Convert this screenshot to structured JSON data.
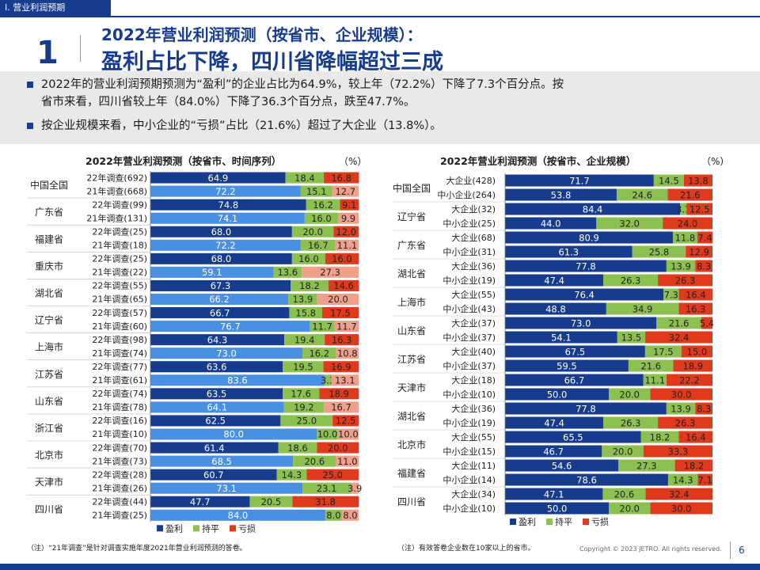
{
  "section_tag": "Ⅰ. 营业利润预期",
  "page_number_big": "1",
  "title_line1": "2022年营业利润预测（按省市、企业规模）：",
  "title_line2": "盈利占比下降，四川省降幅超过三成",
  "bullets": [
    "2022年的营业利润预期预测为“盈利”的企业占比为64.9%，较上年（72.2%）下降了7.3个百分点。按",
    "省市来看，四川省较上年（84.0%）下降了36.3个百分点，跌至47.7%。",
    "按企业规模来看，中小企业的“亏损”占比（21.6%）超过了大企业（13.8%）。"
  ],
  "colors": {
    "primary": "#173c8e",
    "profit_dark": "#173c8e",
    "profit_light": "#4a90e2",
    "flat": "#8cc152",
    "loss": "#e03a1e",
    "loss_light": "#f0a08a"
  },
  "chart_data": [
    {
      "type": "bar",
      "stacked": true,
      "orientation": "horizontal",
      "title": "2022年营业利润预测（按省市、时间序列）",
      "unit": "（%）",
      "series_names": [
        "盈利",
        "持平",
        "亏损"
      ],
      "groups": [
        {
          "name": "中国全国",
          "rows": [
            {
              "label": "22年调查(692)",
              "values": [
                64.9,
                18.4,
                16.8
              ]
            },
            {
              "label": "21年调查(668)",
              "values": [
                72.2,
                15.1,
                12.7
              ]
            }
          ]
        },
        {
          "name": "广东省",
          "rows": [
            {
              "label": "22年调查(99)",
              "values": [
                74.8,
                16.2,
                9.1
              ]
            },
            {
              "label": "21年调查(131)",
              "values": [
                74.1,
                16.0,
                9.9
              ]
            }
          ]
        },
        {
          "name": "福建省",
          "rows": [
            {
              "label": "22年调查(25)",
              "values": [
                68.0,
                20.0,
                12.0
              ]
            },
            {
              "label": "21年调查(18)",
              "values": [
                72.2,
                16.7,
                11.1
              ]
            }
          ]
        },
        {
          "name": "重庆市",
          "rows": [
            {
              "label": "22年调查(25)",
              "values": [
                68.0,
                16.0,
                16.0
              ]
            },
            {
              "label": "21年调查(22)",
              "values": [
                59.1,
                13.6,
                27.3
              ]
            }
          ]
        },
        {
          "name": "湖北省",
          "rows": [
            {
              "label": "22年调查(55)",
              "values": [
                67.3,
                18.2,
                14.6
              ]
            },
            {
              "label": "21年调查(65)",
              "values": [
                66.2,
                13.9,
                20.0
              ]
            }
          ]
        },
        {
          "name": "辽宁省",
          "rows": [
            {
              "label": "22年调查(57)",
              "values": [
                66.7,
                15.8,
                17.5
              ]
            },
            {
              "label": "21年调查(60)",
              "values": [
                76.7,
                11.7,
                11.7
              ]
            }
          ]
        },
        {
          "name": "上海市",
          "rows": [
            {
              "label": "22年调查(98)",
              "values": [
                64.3,
                19.4,
                16.3
              ]
            },
            {
              "label": "21年调查(74)",
              "values": [
                73.0,
                16.2,
                10.8
              ]
            }
          ]
        },
        {
          "name": "江苏省",
          "rows": [
            {
              "label": "22年调查(77)",
              "values": [
                63.6,
                19.5,
                16.9
              ]
            },
            {
              "label": "21年调查(61)",
              "values": [
                83.6,
                3.3,
                13.1
              ]
            }
          ]
        },
        {
          "name": "山东省",
          "rows": [
            {
              "label": "22年调查(74)",
              "values": [
                63.5,
                17.6,
                18.9
              ]
            },
            {
              "label": "21年调查(78)",
              "values": [
                64.1,
                19.2,
                16.7
              ]
            }
          ]
        },
        {
          "name": "浙江省",
          "rows": [
            {
              "label": "22年调查(16)",
              "values": [
                62.5,
                25.0,
                12.5
              ]
            },
            {
              "label": "21年调查(10)",
              "values": [
                80.0,
                10.0,
                10.0
              ]
            }
          ]
        },
        {
          "name": "北京市",
          "rows": [
            {
              "label": "22年调查(70)",
              "values": [
                61.4,
                18.6,
                20.0
              ]
            },
            {
              "label": "21年调查(73)",
              "values": [
                68.5,
                20.6,
                11.0
              ]
            }
          ]
        },
        {
          "name": "天津市",
          "rows": [
            {
              "label": "22年调查(28)",
              "values": [
                60.7,
                14.3,
                25.0
              ]
            },
            {
              "label": "21年调查(26)",
              "values": [
                73.1,
                23.1,
                3.9
              ]
            }
          ]
        },
        {
          "name": "四川省",
          "rows": [
            {
              "label": "22年调查(44)",
              "values": [
                47.7,
                20.5,
                31.8
              ]
            },
            {
              "label": "21年调查(25)",
              "values": [
                84.0,
                8.0,
                8.0
              ]
            }
          ]
        }
      ],
      "legend": [
        "盈利",
        "持平",
        "亏损"
      ],
      "note": "（注）“21年调查”是针对调查实施年度2021年营业利润预测的答卷。"
    },
    {
      "type": "bar",
      "stacked": true,
      "orientation": "horizontal",
      "title": "2022年营业利润预测（按省市、企业规模）",
      "unit": "（%）",
      "series_names": [
        "盈利",
        "持平",
        "亏损"
      ],
      "groups": [
        {
          "name": "中国全国",
          "rows": [
            {
              "label": "大企业(428)",
              "values": [
                71.7,
                14.5,
                13.8
              ]
            },
            {
              "label": "中小企业(264)",
              "values": [
                53.8,
                24.6,
                21.6
              ]
            }
          ]
        },
        {
          "name": "辽宁省",
          "rows": [
            {
              "label": "大企业(32)",
              "values": [
                84.4,
                3.1,
                12.5
              ]
            },
            {
              "label": "中小企业(25)",
              "values": [
                44.0,
                32.0,
                24.0
              ]
            }
          ]
        },
        {
          "name": "广东省",
          "rows": [
            {
              "label": "大企业(68)",
              "values": [
                80.9,
                11.8,
                7.4
              ]
            },
            {
              "label": "中小企业(31)",
              "values": [
                61.3,
                25.8,
                12.9
              ]
            }
          ]
        },
        {
          "name": "湖北省",
          "rows": [
            {
              "label": "大企业(36)",
              "values": [
                77.8,
                13.9,
                8.3
              ]
            },
            {
              "label": "中小企业(19)",
              "values": [
                47.4,
                26.3,
                26.3
              ]
            }
          ]
        },
        {
          "name": "上海市",
          "rows": [
            {
              "label": "大企业(55)",
              "values": [
                76.4,
                7.3,
                16.4
              ]
            },
            {
              "label": "中小企业(43)",
              "values": [
                48.8,
                34.9,
                16.3
              ]
            }
          ]
        },
        {
          "name": "山东省",
          "rows": [
            {
              "label": "大企业(37)",
              "values": [
                73.0,
                21.6,
                5.4
              ]
            },
            {
              "label": "中小企业(37)",
              "values": [
                54.1,
                13.5,
                32.4
              ]
            }
          ]
        },
        {
          "name": "江苏省",
          "rows": [
            {
              "label": "大企业(40)",
              "values": [
                67.5,
                17.5,
                15.0
              ]
            },
            {
              "label": "中小企业(37)",
              "values": [
                59.5,
                21.6,
                18.9
              ]
            }
          ]
        },
        {
          "name": "天津市",
          "rows": [
            {
              "label": "大企业(18)",
              "values": [
                66.7,
                11.1,
                22.2
              ]
            },
            {
              "label": "中小企业(10)",
              "values": [
                50.0,
                20.0,
                30.0
              ]
            }
          ]
        },
        {
          "name": "湖北省",
          "rows": [
            {
              "label": "大企业(36)",
              "values": [
                77.8,
                13.9,
                8.3
              ]
            },
            {
              "label": "中小企业(19)",
              "values": [
                47.4,
                26.3,
                26.3
              ]
            }
          ]
        },
        {
          "name": "北京市",
          "rows": [
            {
              "label": "大企业(55)",
              "values": [
                65.5,
                18.2,
                16.4
              ]
            },
            {
              "label": "中小企业(15)",
              "values": [
                46.7,
                20.0,
                33.3
              ]
            }
          ]
        },
        {
          "name": "福建省",
          "rows": [
            {
              "label": "大企业(11)",
              "values": [
                54.6,
                27.3,
                18.2
              ]
            },
            {
              "label": "中小企业(14)",
              "values": [
                78.6,
                14.3,
                7.1
              ]
            }
          ]
        },
        {
          "name": "四川省",
          "rows": [
            {
              "label": "大企业(34)",
              "values": [
                47.1,
                20.6,
                32.4
              ]
            },
            {
              "label": "中小企业(10)",
              "values": [
                50.0,
                20.0,
                30.0
              ]
            }
          ]
        }
      ],
      "legend": [
        "盈利",
        "持平",
        "亏损"
      ],
      "note": "（注）有效答卷企业数在10家以上的省市。"
    }
  ],
  "copyright": "Copyright © 2023 JETRO. All rights reserved.",
  "page_number": "6"
}
